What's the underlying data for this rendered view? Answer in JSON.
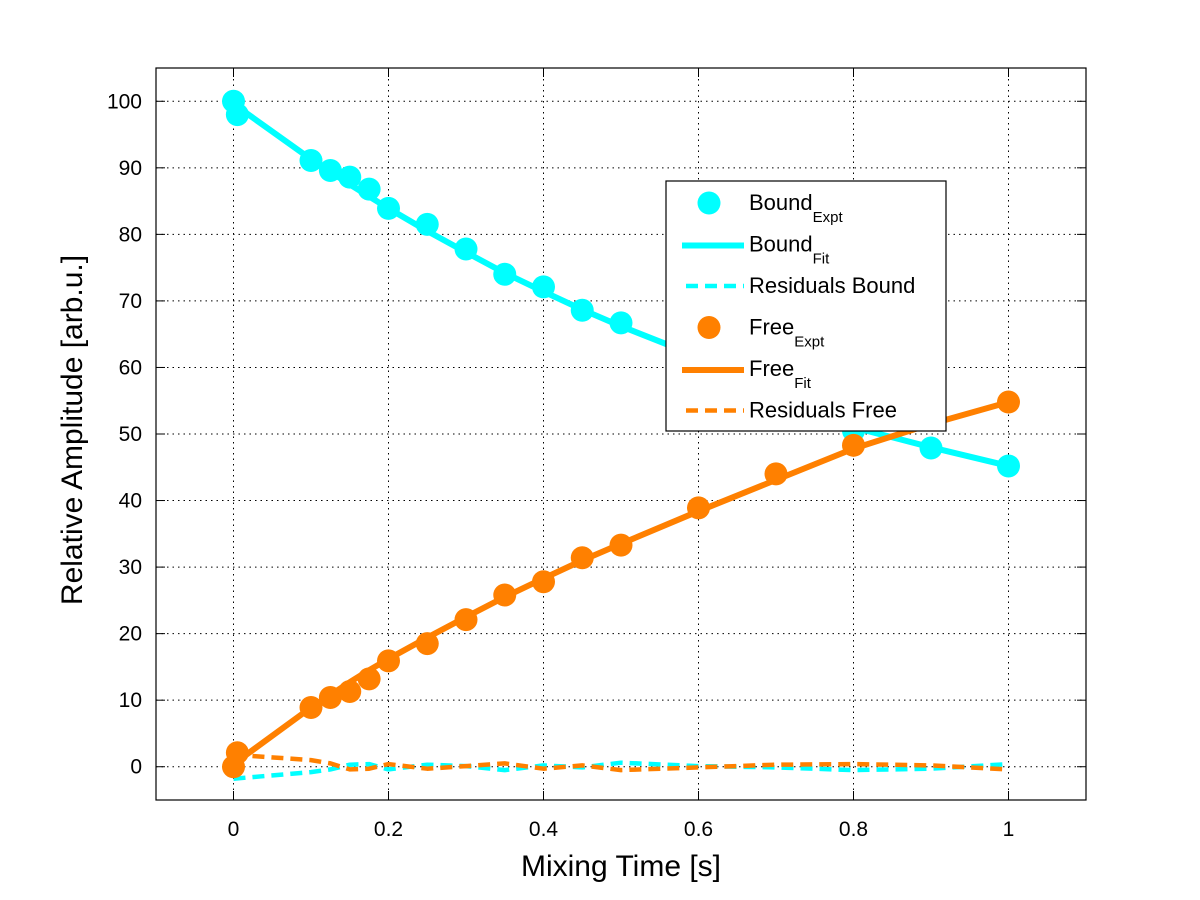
{
  "chart_data": {
    "type": "line",
    "title": "",
    "xlabel": "Mixing Time [s]",
    "ylabel": "Relative Amplitude [arb.u.]",
    "xlim": [
      -0.1,
      1.1
    ],
    "ylim": [
      -5,
      105
    ],
    "xticks": [
      0,
      0.2,
      0.4,
      0.6,
      0.8,
      1
    ],
    "xtick_labels": [
      "0",
      "0.2",
      "0.4",
      "0.6",
      "0.8",
      "1"
    ],
    "yticks": [
      0,
      10,
      20,
      30,
      40,
      50,
      60,
      70,
      80,
      90,
      100
    ],
    "ytick_labels": [
      "0",
      "10",
      "20",
      "30",
      "40",
      "50",
      "60",
      "70",
      "80",
      "90",
      "100"
    ],
    "grid": true,
    "grid_style": "dotted",
    "legend_position": "upper-right-inset",
    "colors": {
      "bound": "#00ffff",
      "free": "#ff8000"
    },
    "series": [
      {
        "name": "Bound_Expt",
        "label_main": "Bound",
        "label_sub": "Expt",
        "kind": "scatter",
        "color": "#00ffff",
        "x": [
          0,
          0.005,
          0.1,
          0.125,
          0.15,
          0.175,
          0.2,
          0.25,
          0.3,
          0.35,
          0.4,
          0.45,
          0.5,
          0.6,
          0.7,
          0.8,
          0.9,
          1.0
        ],
        "y": [
          100,
          98,
          91.1,
          89.6,
          88.6,
          86.8,
          83.9,
          81.5,
          77.8,
          74.0,
          72.1,
          68.6,
          66.7,
          61.5,
          56.0,
          50.5,
          47.9,
          45.2
        ]
      },
      {
        "name": "Bound_Fit",
        "label_main": "Bound",
        "label_sub": "Fit",
        "kind": "line",
        "color": "#00ffff",
        "x": [
          0,
          0.1,
          0.125,
          0.15,
          0.175,
          0.2,
          0.25,
          0.3,
          0.35,
          0.4,
          0.45,
          0.5,
          0.6,
          0.7,
          0.8,
          0.9,
          1.0
        ],
        "y": [
          99.6,
          91.3,
          89.4,
          87.5,
          85.7,
          83.9,
          80.5,
          77.3,
          74.2,
          71.4,
          68.7,
          66.2,
          61.6,
          57.6,
          51.0,
          48.0,
          45.2
        ]
      },
      {
        "name": "Residuals Bound",
        "label_main": "Residuals Bound",
        "label_sub": "",
        "kind": "dashed",
        "color": "#00ffff",
        "x": [
          0,
          0.1,
          0.125,
          0.15,
          0.175,
          0.2,
          0.25,
          0.3,
          0.35,
          0.4,
          0.45,
          0.5,
          0.6,
          0.7,
          0.8,
          0.9,
          1.0
        ],
        "y": [
          -1.8,
          -0.8,
          -0.4,
          0.3,
          0.4,
          -0.4,
          0.3,
          0.1,
          -0.5,
          0.2,
          -0.1,
          0.6,
          0.1,
          -0.1,
          -0.5,
          -0.3,
          0.4
        ]
      },
      {
        "name": "Free_Expt",
        "label_main": "Free",
        "label_sub": "Expt",
        "kind": "scatter",
        "color": "#ff8000",
        "x": [
          0,
          0.005,
          0.1,
          0.125,
          0.15,
          0.175,
          0.2,
          0.25,
          0.3,
          0.35,
          0.4,
          0.45,
          0.5,
          0.6,
          0.7,
          0.8,
          1.0
        ],
        "y": [
          0,
          2.1,
          8.9,
          10.4,
          11.3,
          13.2,
          15.9,
          18.5,
          22.1,
          25.8,
          27.8,
          31.4,
          33.3,
          38.9,
          44.0,
          48.3,
          54.8
        ]
      },
      {
        "name": "Free_Fit",
        "label_main": "Free",
        "label_sub": "Fit",
        "kind": "line",
        "color": "#ff8000",
        "x": [
          0,
          0.1,
          0.125,
          0.15,
          0.175,
          0.2,
          0.25,
          0.3,
          0.35,
          0.4,
          0.45,
          0.5,
          0.6,
          0.7,
          0.8,
          0.9,
          1.0
        ],
        "y": [
          0.4,
          8.9,
          10.8,
          12.7,
          14.5,
          16.2,
          19.4,
          22.5,
          25.5,
          28.3,
          31.0,
          33.5,
          38.4,
          43.1,
          47.8,
          51.5,
          54.8
        ]
      },
      {
        "name": "Residuals Free",
        "label_main": "Residuals Free",
        "label_sub": "",
        "kind": "dashed",
        "color": "#ff8000",
        "x": [
          0,
          0.1,
          0.125,
          0.15,
          0.175,
          0.2,
          0.25,
          0.3,
          0.35,
          0.4,
          0.45,
          0.5,
          0.6,
          0.7,
          0.8,
          0.9,
          1.0
        ],
        "y": [
          1.8,
          1.0,
          0.5,
          -0.4,
          -0.3,
          0.4,
          -0.3,
          0.1,
          0.5,
          -0.3,
          0.2,
          -0.5,
          -0.1,
          0.3,
          0.4,
          0.2,
          -0.4
        ]
      }
    ]
  }
}
